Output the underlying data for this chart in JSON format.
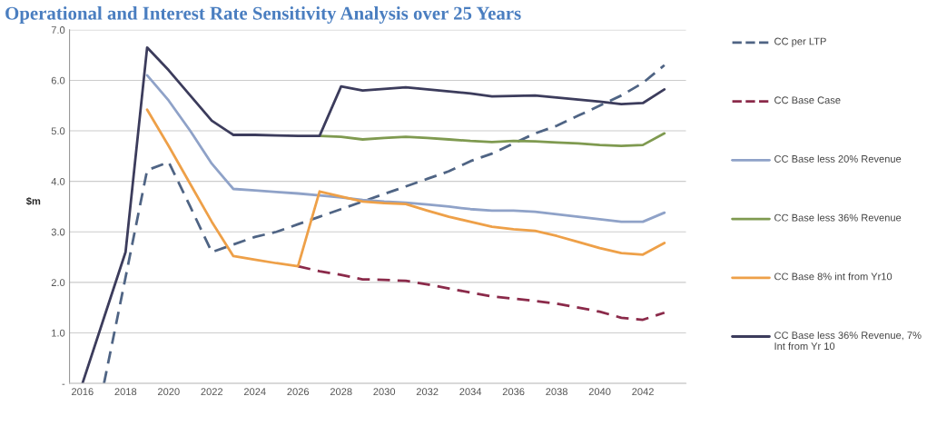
{
  "chart_data": {
    "type": "line",
    "title": "Operational and Interest Rate Sensitivity Analysis over 25 Years",
    "ylabel": "$m",
    "x": [
      2016,
      2017,
      2018,
      2019,
      2020,
      2021,
      2022,
      2023,
      2024,
      2025,
      2026,
      2027,
      2028,
      2029,
      2030,
      2031,
      2032,
      2033,
      2034,
      2035,
      2036,
      2037,
      2038,
      2039,
      2040,
      2041,
      2042,
      2043
    ],
    "series": [
      {
        "name": "CC per LTP",
        "color": "#4f6484",
        "line_style": "dashed",
        "values": [
          null,
          0,
          2.1,
          4.22,
          4.38,
          3.5,
          2.6,
          2.75,
          2.9,
          3.0,
          3.15,
          3.3,
          3.45,
          3.6,
          3.75,
          3.9,
          4.05,
          4.2,
          4.4,
          4.55,
          4.75,
          4.95,
          5.1,
          5.3,
          5.5,
          5.7,
          5.95,
          6.3
        ]
      },
      {
        "name": "CC Base Case",
        "color": "#8b2a4a",
        "line_style": "dashed",
        "values": [
          null,
          null,
          null,
          null,
          null,
          null,
          null,
          null,
          null,
          null,
          2.32,
          2.22,
          2.15,
          2.06,
          2.05,
          2.03,
          1.96,
          1.88,
          1.8,
          1.72,
          1.68,
          1.63,
          1.58,
          1.5,
          1.42,
          1.3,
          1.26,
          1.4
        ]
      },
      {
        "name": "CC Base less 20% Revenue",
        "color": "#8fa2c8",
        "line_style": "solid",
        "values": [
          null,
          null,
          null,
          6.1,
          5.6,
          5.0,
          4.35,
          3.85,
          3.82,
          3.79,
          3.76,
          3.72,
          3.68,
          3.63,
          3.6,
          3.58,
          3.54,
          3.5,
          3.45,
          3.42,
          3.42,
          3.4,
          3.35,
          3.3,
          3.25,
          3.2,
          3.2,
          3.38
        ]
      },
      {
        "name": "CC Base less 36% Revenue",
        "color": "#7f9a50",
        "line_style": "solid",
        "values": [
          null,
          null,
          null,
          null,
          null,
          null,
          null,
          null,
          null,
          null,
          null,
          4.9,
          4.88,
          4.83,
          4.86,
          4.88,
          4.86,
          4.83,
          4.8,
          4.78,
          4.8,
          4.79,
          4.77,
          4.75,
          4.72,
          4.7,
          4.72,
          4.95
        ]
      },
      {
        "name": "CC Base 8% int from Yr10",
        "color": "#eea048",
        "line_style": "solid",
        "values": [
          null,
          null,
          null,
          5.42,
          4.7,
          3.95,
          3.2,
          2.52,
          2.45,
          2.38,
          2.32,
          3.8,
          3.7,
          3.6,
          3.57,
          3.55,
          3.42,
          3.3,
          3.2,
          3.1,
          3.05,
          3.02,
          2.92,
          2.8,
          2.68,
          2.58,
          2.55,
          2.78
        ]
      },
      {
        "name": "CC Base less 36% Revenue, 7% Int from Yr 10",
        "color": "#3c3c5c",
        "line_style": "solid",
        "values": [
          0,
          1.3,
          2.6,
          6.65,
          6.2,
          5.7,
          5.2,
          4.92,
          4.92,
          4.91,
          4.9,
          4.9,
          5.88,
          5.8,
          5.83,
          5.86,
          5.82,
          5.78,
          5.74,
          5.68,
          5.69,
          5.7,
          5.66,
          5.62,
          5.58,
          5.53,
          5.55,
          5.82
        ]
      }
    ],
    "xlim": [
      2015.4,
      2044
    ],
    "xticks": [
      2016,
      2018,
      2020,
      2022,
      2024,
      2026,
      2028,
      2030,
      2032,
      2034,
      2036,
      2038,
      2040,
      2042
    ],
    "ylim": [
      0,
      7
    ],
    "yticks": [
      {
        "value": 0,
        "label": "-"
      },
      {
        "value": 1,
        "label": "1.0"
      },
      {
        "value": 2,
        "label": "2.0"
      },
      {
        "value": 3,
        "label": "3.0"
      },
      {
        "value": 4,
        "label": "4.0"
      },
      {
        "value": 5,
        "label": "5.0"
      },
      {
        "value": 6,
        "label": "6.0"
      },
      {
        "value": 7,
        "label": "7.0"
      }
    ],
    "grid": "y",
    "legend": "right",
    "marker": "none"
  }
}
